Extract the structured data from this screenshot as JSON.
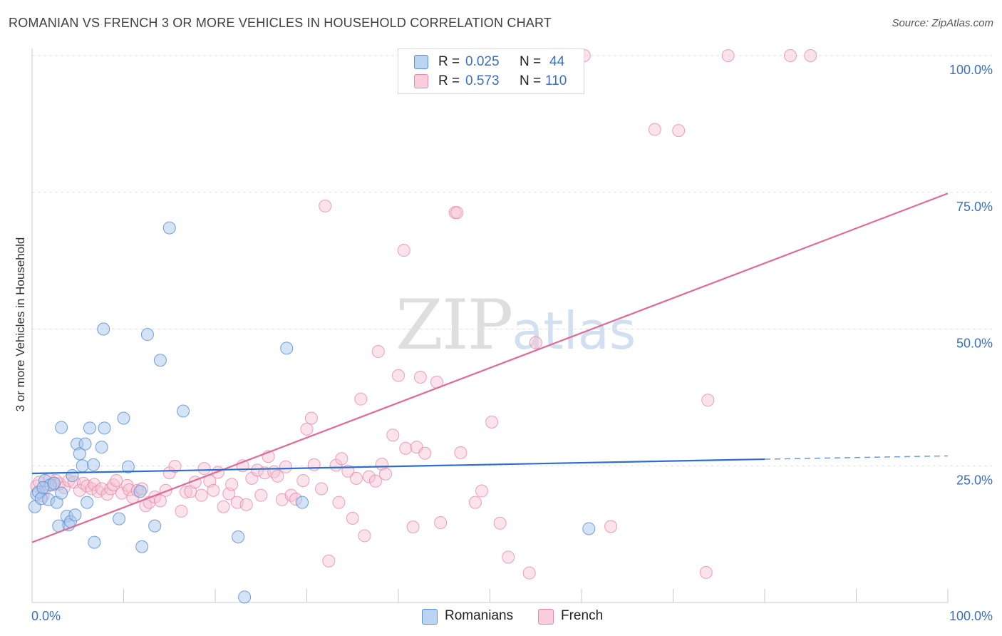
{
  "title": "ROMANIAN VS FRENCH 3 OR MORE VEHICLES IN HOUSEHOLD CORRELATION CHART",
  "source": "Source: ZipAtlas.com",
  "watermark": {
    "zip": "ZIP",
    "atlas": "atlas"
  },
  "legend": {
    "r_label": "R =",
    "n_label": "N =",
    "romanians": {
      "r": "0.025",
      "n": "44"
    },
    "french": {
      "r": "0.573",
      "n": "110"
    }
  },
  "colors": {
    "romanians_fill": "#aac7ee",
    "romanians_stroke": "#5b8fd6",
    "romanians_line": "#2e6fce",
    "french_fill": "#f7c0d2",
    "french_stroke": "#e58aa8",
    "french_line": "#e06a97",
    "axis_label": "#3b6fc2",
    "grid": "#e2e2e2"
  },
  "chart_data": {
    "type": "scatter",
    "title": "ROMANIAN VS FRENCH 3 OR MORE VEHICLES IN HOUSEHOLD CORRELATION CHART",
    "xlabel": "",
    "ylabel": "3 or more Vehicles in Household",
    "xlim": [
      0,
      100
    ],
    "ylim": [
      0,
      100
    ],
    "x_tick_labels": [
      "0.0%",
      "100.0%"
    ],
    "y_tick_labels": [
      "25.0%",
      "50.0%",
      "75.0%",
      "100.0%"
    ],
    "y_ticks": [
      25,
      50,
      75,
      100
    ],
    "legend": [
      "Romanians",
      "French"
    ],
    "series": [
      {
        "name": "Romanians",
        "trend": {
          "x0": 0,
          "y0": 23.6,
          "x1": 80,
          "y1": 26.2,
          "dash_to_x": 100,
          "dash_to_y": 26.8
        },
        "points": [
          [
            0.3,
            17.5
          ],
          [
            0.5,
            19.8
          ],
          [
            0.7,
            20.2
          ],
          [
            1.0,
            19.0
          ],
          [
            1.4,
            22.3
          ],
          [
            1.8,
            18.8
          ],
          [
            2.0,
            21.5
          ],
          [
            2.4,
            21.8
          ],
          [
            2.7,
            18.3
          ],
          [
            2.9,
            14.0
          ],
          [
            3.2,
            20.0
          ],
          [
            3.2,
            32.0
          ],
          [
            3.8,
            15.8
          ],
          [
            4.0,
            14.2
          ],
          [
            4.2,
            14.8
          ],
          [
            4.4,
            23.2
          ],
          [
            4.7,
            16.0
          ],
          [
            4.9,
            29.0
          ],
          [
            5.2,
            27.2
          ],
          [
            5.5,
            25.0
          ],
          [
            5.8,
            29.0
          ],
          [
            6.0,
            18.3
          ],
          [
            6.3,
            31.9
          ],
          [
            6.7,
            25.2
          ],
          [
            6.8,
            11.0
          ],
          [
            7.6,
            28.4
          ],
          [
            7.8,
            50.0
          ],
          [
            7.9,
            31.9
          ],
          [
            9.5,
            15.3
          ],
          [
            10.0,
            33.7
          ],
          [
            10.5,
            24.8
          ],
          [
            11.8,
            20.3
          ],
          [
            12.0,
            10.2
          ],
          [
            12.6,
            49.0
          ],
          [
            13.4,
            14.0
          ],
          [
            14.0,
            44.3
          ],
          [
            15.0,
            68.5
          ],
          [
            16.5,
            35.0
          ],
          [
            22.5,
            12.0
          ],
          [
            23.2,
            1.0
          ],
          [
            27.8,
            46.5
          ],
          [
            29.5,
            18.3
          ],
          [
            60.8,
            13.5
          ],
          [
            1.2,
            21.0
          ]
        ]
      },
      {
        "name": "French",
        "trend": {
          "x0": 0,
          "y0": 11.0,
          "x1": 100,
          "y1": 74.8
        },
        "points": [
          [
            0.5,
            21.3
          ],
          [
            0.8,
            22.0
          ],
          [
            1.2,
            19.5
          ],
          [
            1.5,
            21.0
          ],
          [
            1.9,
            22.5
          ],
          [
            2.3,
            21.5
          ],
          [
            2.6,
            22.3
          ],
          [
            3.0,
            21.7
          ],
          [
            3.5,
            21.0
          ],
          [
            4.0,
            22.3
          ],
          [
            4.6,
            22.0
          ],
          [
            5.2,
            20.5
          ],
          [
            5.6,
            21.8
          ],
          [
            6.0,
            21.3
          ],
          [
            6.5,
            20.8
          ],
          [
            6.8,
            21.6
          ],
          [
            7.2,
            20.3
          ],
          [
            7.6,
            20.8
          ],
          [
            8.2,
            19.8
          ],
          [
            8.6,
            20.8
          ],
          [
            8.9,
            21.5
          ],
          [
            9.2,
            22.3
          ],
          [
            9.8,
            20.0
          ],
          [
            10.4,
            21.4
          ],
          [
            10.6,
            20.6
          ],
          [
            11.0,
            19.2
          ],
          [
            11.5,
            20.5
          ],
          [
            12.0,
            20.8
          ],
          [
            12.4,
            17.7
          ],
          [
            12.8,
            18.3
          ],
          [
            13.4,
            19.3
          ],
          [
            14.0,
            18.6
          ],
          [
            14.6,
            20.5
          ],
          [
            15.0,
            23.7
          ],
          [
            15.6,
            24.9
          ],
          [
            16.3,
            16.7
          ],
          [
            16.8,
            20.2
          ],
          [
            17.3,
            20.3
          ],
          [
            17.8,
            22.0
          ],
          [
            18.5,
            19.6
          ],
          [
            18.8,
            24.5
          ],
          [
            19.4,
            22.2
          ],
          [
            19.8,
            20.5
          ],
          [
            20.3,
            23.8
          ],
          [
            20.9,
            17.5
          ],
          [
            21.5,
            19.9
          ],
          [
            21.8,
            21.6
          ],
          [
            22.4,
            18.3
          ],
          [
            23.0,
            25.0
          ],
          [
            23.4,
            17.9
          ],
          [
            24.0,
            22.7
          ],
          [
            24.6,
            24.2
          ],
          [
            25.0,
            19.6
          ],
          [
            25.4,
            23.7
          ],
          [
            25.8,
            26.7
          ],
          [
            26.4,
            23.9
          ],
          [
            26.8,
            23.1
          ],
          [
            27.3,
            18.8
          ],
          [
            27.7,
            24.8
          ],
          [
            28.3,
            19.6
          ],
          [
            28.8,
            18.9
          ],
          [
            29.6,
            22.3
          ],
          [
            30.0,
            31.7
          ],
          [
            30.5,
            33.7
          ],
          [
            30.8,
            25.2
          ],
          [
            31.6,
            20.8
          ],
          [
            32.0,
            72.5
          ],
          [
            32.4,
            7.6
          ],
          [
            33.2,
            25.1
          ],
          [
            33.5,
            18.3
          ],
          [
            33.8,
            26.3
          ],
          [
            34.5,
            24.0
          ],
          [
            35.0,
            15.4
          ],
          [
            35.4,
            22.7
          ],
          [
            35.9,
            37.2
          ],
          [
            36.3,
            12.2
          ],
          [
            36.8,
            23.0
          ],
          [
            37.5,
            22.2
          ],
          [
            37.8,
            45.9
          ],
          [
            38.2,
            25.3
          ],
          [
            38.6,
            23.5
          ],
          [
            39.4,
            30.6
          ],
          [
            40.0,
            41.5
          ],
          [
            40.6,
            64.4
          ],
          [
            40.8,
            28.2
          ],
          [
            41.6,
            13.8
          ],
          [
            42.0,
            28.4
          ],
          [
            42.4,
            41.2
          ],
          [
            42.9,
            27.3
          ],
          [
            44.2,
            40.3
          ],
          [
            44.6,
            14.6
          ],
          [
            46.2,
            71.3
          ],
          [
            46.4,
            71.3
          ],
          [
            46.8,
            27.4
          ],
          [
            48.4,
            18.3
          ],
          [
            49.1,
            20.4
          ],
          [
            50.2,
            33.0
          ],
          [
            51.1,
            14.5
          ],
          [
            52.0,
            8.3
          ],
          [
            54.3,
            5.4
          ],
          [
            55.0,
            47.5
          ],
          [
            63.2,
            13.9
          ],
          [
            68.0,
            86.5
          ],
          [
            70.6,
            86.3
          ],
          [
            73.6,
            5.5
          ],
          [
            73.8,
            37.0
          ],
          [
            76.0,
            100.0
          ],
          [
            82.8,
            100.0
          ],
          [
            85.0,
            100.0
          ],
          [
            60.3,
            100.0
          ]
        ]
      }
    ]
  }
}
